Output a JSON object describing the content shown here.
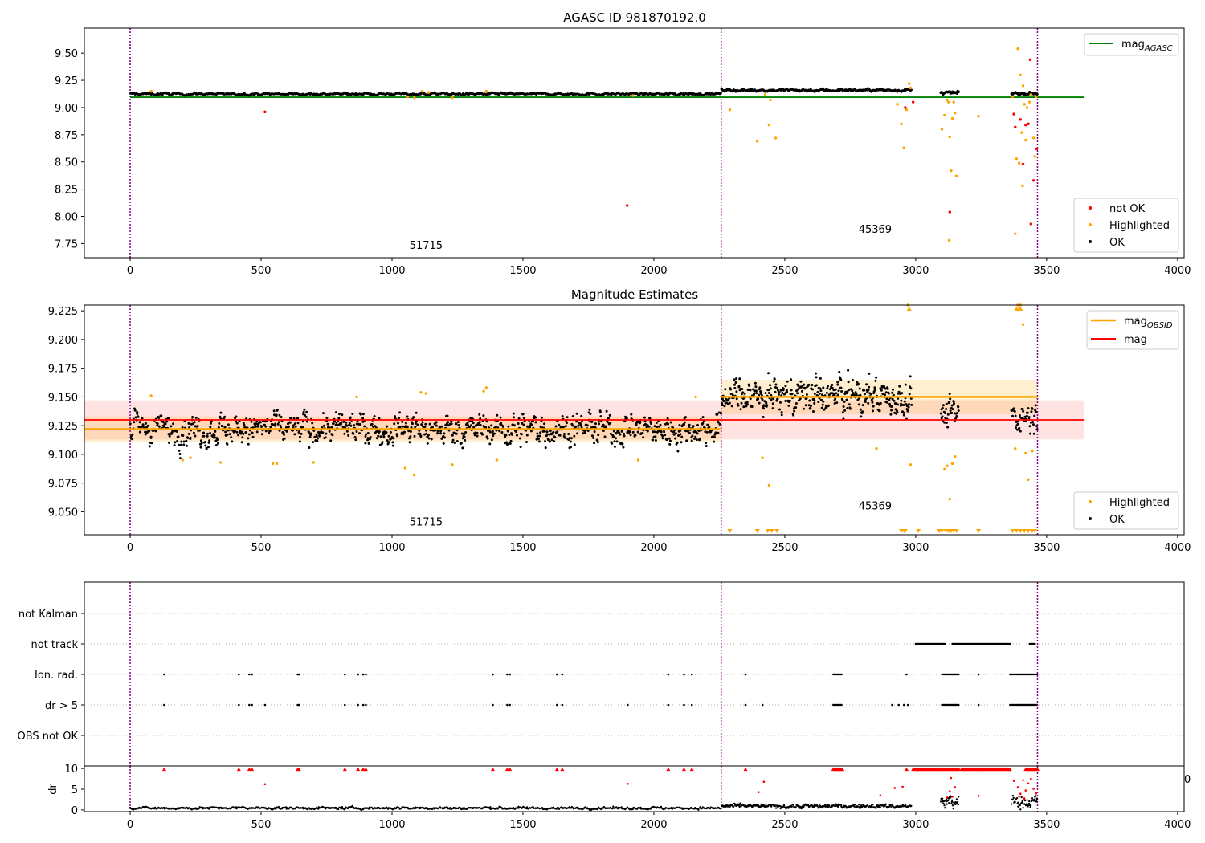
{
  "figure": {
    "background": "#ffffff"
  },
  "chart_data": [
    {
      "id": "panel1",
      "type": "scatter",
      "title": "AGASC ID 981870192.0",
      "xlim": [
        -175,
        4025
      ],
      "ylim": [
        7.62,
        9.73
      ],
      "xticks": [
        0,
        500,
        1000,
        1500,
        2000,
        2500,
        3000,
        3500,
        4000
      ],
      "xtick_labels": [
        "0",
        "500",
        "1000",
        "1500",
        "2000",
        "2500",
        "3000",
        "3500",
        "4000"
      ],
      "yticks": [
        7.75,
        8.0,
        8.25,
        8.5,
        8.75,
        9.0,
        9.25,
        9.5
      ],
      "ytick_labels": [
        "7.75",
        "8.00",
        "8.25",
        "8.50",
        "8.75",
        "9.00",
        "9.25",
        "9.50"
      ],
      "vlines": [
        0,
        2257,
        3465
      ],
      "vline_color": "#800080",
      "hline": {
        "y": 9.095,
        "x0": 0,
        "x1": 3645,
        "color": "#008000",
        "label": "mag",
        "label_sub": "AGASC"
      },
      "annotations": [
        {
          "x": 1130,
          "y": 7.7,
          "text": "51715"
        },
        {
          "x": 2845,
          "y": 7.85,
          "text": "45369"
        }
      ],
      "ok_segments": [
        {
          "x0": 0,
          "x1": 2257,
          "mean": 9.125,
          "noise": 0.008,
          "n": 800
        },
        {
          "x0": 2257,
          "x1": 2985,
          "mean": 9.16,
          "noise": 0.01,
          "n": 330
        },
        {
          "x0": 3095,
          "x1": 3165,
          "mean": 9.135,
          "noise": 0.01,
          "n": 40
        },
        {
          "x0": 3365,
          "x1": 3465,
          "mean": 9.13,
          "noise": 0.01,
          "n": 50
        }
      ],
      "highlighted": [
        {
          "x": 80,
          "y": 9.15
        },
        {
          "x": 1060,
          "y": 9.1
        },
        {
          "x": 1085,
          "y": 9.09
        },
        {
          "x": 1115,
          "y": 9.15
        },
        {
          "x": 1140,
          "y": 9.14
        },
        {
          "x": 1230,
          "y": 9.09
        },
        {
          "x": 1360,
          "y": 9.15
        },
        {
          "x": 1920,
          "y": 9.11
        },
        {
          "x": 2290,
          "y": 8.98
        },
        {
          "x": 2395,
          "y": 8.69
        },
        {
          "x": 2425,
          "y": 9.12
        },
        {
          "x": 2440,
          "y": 8.84
        },
        {
          "x": 2445,
          "y": 9.07
        },
        {
          "x": 2465,
          "y": 8.72
        },
        {
          "x": 2930,
          "y": 9.03
        },
        {
          "x": 2945,
          "y": 8.85
        },
        {
          "x": 2955,
          "y": 8.63
        },
        {
          "x": 2965,
          "y": 8.98
        },
        {
          "x": 2975,
          "y": 9.22
        },
        {
          "x": 2980,
          "y": 9.18
        },
        {
          "x": 3100,
          "y": 8.8
        },
        {
          "x": 3110,
          "y": 8.93
        },
        {
          "x": 3120,
          "y": 9.07
        },
        {
          "x": 3125,
          "y": 9.05
        },
        {
          "x": 3130,
          "y": 8.73
        },
        {
          "x": 3135,
          "y": 8.42
        },
        {
          "x": 3140,
          "y": 8.9
        },
        {
          "x": 3145,
          "y": 9.05
        },
        {
          "x": 3150,
          "y": 8.95
        },
        {
          "x": 3155,
          "y": 8.37
        },
        {
          "x": 3128,
          "y": 7.78
        },
        {
          "x": 3240,
          "y": 8.92
        },
        {
          "x": 3370,
          "y": 9.1
        },
        {
          "x": 3380,
          "y": 7.84
        },
        {
          "x": 3385,
          "y": 8.53
        },
        {
          "x": 3390,
          "y": 9.54
        },
        {
          "x": 3395,
          "y": 8.49
        },
        {
          "x": 3400,
          "y": 9.3
        },
        {
          "x": 3405,
          "y": 8.77
        },
        {
          "x": 3408,
          "y": 8.28
        },
        {
          "x": 3410,
          "y": 9.2
        },
        {
          "x": 3415,
          "y": 9.03
        },
        {
          "x": 3420,
          "y": 8.7
        },
        {
          "x": 3425,
          "y": 9.0
        },
        {
          "x": 3430,
          "y": 8.85
        },
        {
          "x": 3435,
          "y": 9.05
        },
        {
          "x": 3440,
          "y": 9.12
        },
        {
          "x": 3450,
          "y": 8.72
        },
        {
          "x": 3455,
          "y": 8.55
        },
        {
          "x": 3460,
          "y": 9.1
        }
      ],
      "not_ok": [
        {
          "x": 515,
          "y": 8.96
        },
        {
          "x": 1898,
          "y": 8.1
        },
        {
          "x": 2960,
          "y": 9.0
        },
        {
          "x": 2990,
          "y": 9.05
        },
        {
          "x": 3130,
          "y": 8.04
        },
        {
          "x": 3375,
          "y": 8.94
        },
        {
          "x": 3380,
          "y": 8.82
        },
        {
          "x": 3400,
          "y": 8.89
        },
        {
          "x": 3410,
          "y": 8.48
        },
        {
          "x": 3420,
          "y": 8.84
        },
        {
          "x": 3430,
          "y": 8.85
        },
        {
          "x": 3437,
          "y": 9.44
        },
        {
          "x": 3440,
          "y": 7.93
        },
        {
          "x": 3450,
          "y": 8.33
        },
        {
          "x": 3462,
          "y": 8.62
        }
      ],
      "legend_upper": [
        {
          "label": "mag",
          "sub": "AGASC",
          "color": "#008000"
        }
      ],
      "legend_lower": [
        {
          "label": "not OK",
          "color": "#ff0000"
        },
        {
          "label": "Highlighted",
          "color": "#ffa500"
        },
        {
          "label": "OK",
          "color": "#000000"
        }
      ]
    },
    {
      "id": "panel2",
      "type": "scatter",
      "title": "Magnitude Estimates",
      "xlim": [
        -175,
        4025
      ],
      "ylim": [
        9.03,
        9.23
      ],
      "xticks": [
        0,
        500,
        1000,
        1500,
        2000,
        2500,
        3000,
        3500,
        4000
      ],
      "xtick_labels": [
        "0",
        "500",
        "1000",
        "1500",
        "2000",
        "2500",
        "3000",
        "3500",
        "4000"
      ],
      "yticks": [
        9.05,
        9.075,
        9.1,
        9.125,
        9.15,
        9.175,
        9.2,
        9.225
      ],
      "ytick_labels": [
        "9.050",
        "9.075",
        "9.100",
        "9.125",
        "9.150",
        "9.175",
        "9.200",
        "9.225"
      ],
      "vlines": [
        0,
        2257,
        3465
      ],
      "vline_color": "#800080",
      "mag_line": {
        "y": 9.13,
        "x0": -175,
        "x1": 3645,
        "band": [
          9.113,
          9.147
        ],
        "color": "#ff0000",
        "band_color": "#ffcccc"
      },
      "obsid_segments": [
        {
          "x0": -175,
          "x1": 2257,
          "y": 9.122,
          "band": [
            9.111,
            9.133
          ]
        },
        {
          "x0": 2257,
          "x1": 3465,
          "y": 9.15,
          "band": [
            9.135,
            9.165
          ]
        }
      ],
      "obsid_color": "#ffa500",
      "annotations": [
        {
          "x": 1130,
          "y": 9.038,
          "text": "51715"
        },
        {
          "x": 2845,
          "y": 9.052,
          "text": "45369"
        }
      ],
      "ok_segments": [
        {
          "x0": 0,
          "x1": 2257,
          "mean": 9.122,
          "noise": 0.01,
          "n": 1100
        },
        {
          "x0": 2257,
          "x1": 2985,
          "mean": 9.151,
          "noise": 0.012,
          "n": 450
        },
        {
          "x0": 3095,
          "x1": 3165,
          "mean": 9.135,
          "noise": 0.01,
          "n": 40
        },
        {
          "x0": 3365,
          "x1": 3465,
          "mean": 9.133,
          "noise": 0.009,
          "n": 50
        }
      ],
      "highlighted": [
        {
          "x": 80,
          "y": 9.151
        },
        {
          "x": 200,
          "y": 9.095
        },
        {
          "x": 230,
          "y": 9.097
        },
        {
          "x": 345,
          "y": 9.093
        },
        {
          "x": 545,
          "y": 9.092
        },
        {
          "x": 560,
          "y": 9.092
        },
        {
          "x": 700,
          "y": 9.093
        },
        {
          "x": 865,
          "y": 9.15
        },
        {
          "x": 1050,
          "y": 9.088
        },
        {
          "x": 1085,
          "y": 9.082
        },
        {
          "x": 1110,
          "y": 9.154
        },
        {
          "x": 1130,
          "y": 9.153
        },
        {
          "x": 1230,
          "y": 9.091
        },
        {
          "x": 1350,
          "y": 9.155
        },
        {
          "x": 1360,
          "y": 9.158
        },
        {
          "x": 1400,
          "y": 9.095
        },
        {
          "x": 1940,
          "y": 9.095
        },
        {
          "x": 2160,
          "y": 9.15
        },
        {
          "x": 2415,
          "y": 9.097
        },
        {
          "x": 2440,
          "y": 9.073
        },
        {
          "x": 2850,
          "y": 9.105
        },
        {
          "x": 2970,
          "y": 9.23
        },
        {
          "x": 2980,
          "y": 9.091
        },
        {
          "x": 3110,
          "y": 9.087
        },
        {
          "x": 3120,
          "y": 9.09
        },
        {
          "x": 3130,
          "y": 9.061
        },
        {
          "x": 3140,
          "y": 9.092
        },
        {
          "x": 3150,
          "y": 9.098
        },
        {
          "x": 3390,
          "y": 9.23
        },
        {
          "x": 3400,
          "y": 9.23
        },
        {
          "x": 3410,
          "y": 9.213
        },
        {
          "x": 3420,
          "y": 9.101
        },
        {
          "x": 3430,
          "y": 9.078
        },
        {
          "x": 3445,
          "y": 9.103
        },
        {
          "x": 3380,
          "y": 9.105
        }
      ],
      "down_markers": [
        2290,
        2395,
        2435,
        2450,
        2470,
        2945,
        2955,
        2960,
        3010,
        3090,
        3100,
        3115,
        3125,
        3135,
        3145,
        3155,
        3240,
        3370,
        3385,
        3400,
        3415,
        3430,
        3445,
        3455
      ],
      "up_markers": [
        2975,
        3385,
        3395,
        3400
      ],
      "legend_upper": [
        {
          "label": "mag",
          "sub": "OBSID",
          "color": "#ffa500"
        },
        {
          "label": "mag",
          "sub": "",
          "color": "#ff0000"
        }
      ],
      "legend_lower": [
        {
          "label": "Highlighted",
          "color": "#ffa500"
        },
        {
          "label": "OK",
          "color": "#000000"
        }
      ]
    },
    {
      "id": "panel3",
      "type": "scatter",
      "xlim": [
        -175,
        4025
      ],
      "categories": [
        "not Kalman",
        "not track",
        "Ion. rad.",
        "dr > 5",
        "OBS not OK"
      ],
      "flag_events": {
        "not Kalman": [],
        "not track": [
          [
            3000,
            3115
          ],
          [
            3140,
            3360
          ],
          [
            3435,
            3455
          ]
        ],
        "Ion. rad.": [
          130,
          415,
          455,
          465,
          640,
          645,
          820,
          870,
          890,
          900,
          1385,
          1440,
          1450,
          1630,
          1650,
          2055,
          2115,
          2145,
          2350,
          2965,
          [
            2685,
            2720
          ],
          [
            3100,
            3165
          ],
          3240,
          [
            3360,
            3465
          ]
        ],
        "dr > 5": [
          130,
          415,
          455,
          465,
          515,
          640,
          645,
          820,
          870,
          890,
          900,
          1385,
          1440,
          1450,
          1630,
          1650,
          1900,
          2055,
          2115,
          2145,
          2350,
          2415,
          2910,
          2935,
          2955,
          2970,
          [
            2685,
            2720
          ],
          [
            3100,
            3165
          ],
          3240,
          [
            3360,
            3465
          ]
        ],
        "OBS not OK": []
      },
      "vlines": [
        0,
        2257,
        3465
      ],
      "vline_color": "#800080"
    },
    {
      "id": "panel4",
      "type": "scatter",
      "ylabel": "dr",
      "xlim": [
        -175,
        4025
      ],
      "ylim": [
        -0.4,
        10.6
      ],
      "xticks": [
        0,
        500,
        1000,
        1500,
        2000,
        2500,
        3000,
        3500,
        4000
      ],
      "xtick_labels": [
        "0",
        "500",
        "1000",
        "1500",
        "2000",
        "2500",
        "3000",
        "3500",
        "4000"
      ],
      "yticks": [
        0,
        5,
        10
      ],
      "ytick_labels": [
        "0",
        "5",
        "10"
      ],
      "overflow_label": "0",
      "vlines": [
        0,
        2257,
        3465
      ],
      "vline_color": "#800080",
      "ok_segments": [
        {
          "x0": 0,
          "x1": 2257,
          "mean": 0.45,
          "noise": 0.22,
          "n": 700
        },
        {
          "x0": 2257,
          "x1": 2985,
          "mean": 0.9,
          "noise": 0.35,
          "n": 300
        },
        {
          "x0": 3095,
          "x1": 3165,
          "mean": 1.8,
          "noise": 1.2,
          "n": 40
        },
        {
          "x0": 3365,
          "x1": 3465,
          "mean": 2.0,
          "noise": 1.2,
          "n": 50
        }
      ],
      "red_points": [
        {
          "x": 515,
          "y": 6.2
        },
        {
          "x": 1900,
          "y": 6.3
        },
        {
          "x": 2400,
          "y": 4.3
        },
        {
          "x": 2420,
          "y": 6.8
        },
        {
          "x": 2865,
          "y": 3.5
        },
        {
          "x": 2920,
          "y": 5.3
        },
        {
          "x": 2950,
          "y": 5.6
        },
        {
          "x": 3135,
          "y": 7.7
        },
        {
          "x": 3150,
          "y": 5.5
        },
        {
          "x": 3240,
          "y": 3.4
        },
        {
          "x": 3120,
          "y": 3.0
        },
        {
          "x": 3130,
          "y": 4.5
        },
        {
          "x": 3140,
          "y": 3.2
        },
        {
          "x": 3375,
          "y": 7.0
        },
        {
          "x": 3390,
          "y": 5.5
        },
        {
          "x": 3400,
          "y": 3.9
        },
        {
          "x": 3410,
          "y": 7.2
        },
        {
          "x": 3420,
          "y": 4.7
        },
        {
          "x": 3430,
          "y": 6.4
        },
        {
          "x": 3440,
          "y": 7.5
        },
        {
          "x": 3450,
          "y": 5.1
        },
        {
          "x": 3395,
          "y": 3.2
        },
        {
          "x": 3415,
          "y": 2.8
        },
        {
          "x": 3460,
          "y": 4.0
        }
      ],
      "red_ceiling_singles": [
        130,
        415,
        455,
        465,
        640,
        645,
        820,
        870,
        890,
        900,
        1385,
        1440,
        1450,
        1630,
        1650,
        2055,
        2115,
        2145,
        2350,
        2965,
        3240
      ],
      "red_ceiling_ranges": [
        [
          2685,
          2720
        ],
        [
          2990,
          3165
        ],
        [
          3175,
          3360
        ],
        [
          3420,
          3465
        ]
      ]
    }
  ]
}
